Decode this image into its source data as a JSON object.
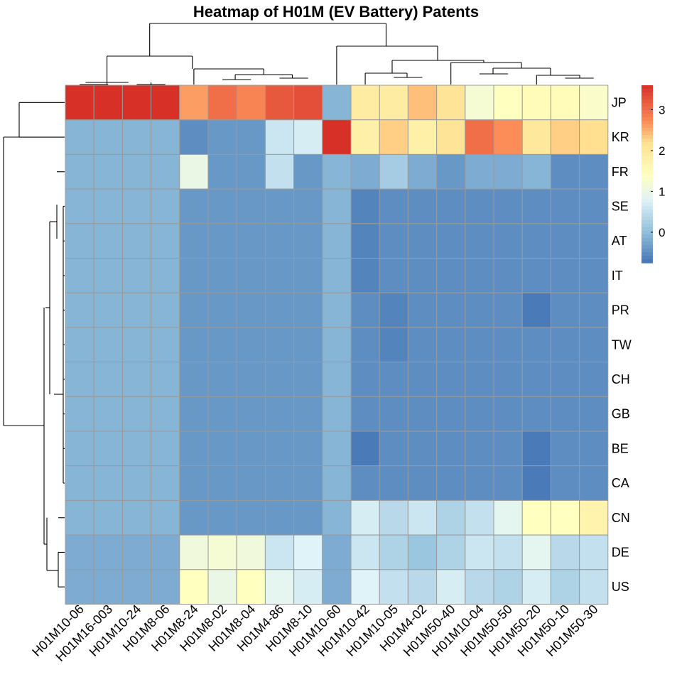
{
  "chart_data": {
    "type": "heatmap",
    "title": "Heatmap of H01M (EV Battery) Patents",
    "rows": [
      "JP",
      "KR",
      "FR",
      "SE",
      "AT",
      "IT",
      "PR",
      "TW",
      "CH",
      "GB",
      "BE",
      "CA",
      "CN",
      "DE",
      "US"
    ],
    "columns": [
      "H01M10-06",
      "H01M16-003",
      "H01M10-24",
      "H01M8-06",
      "H01M8-24",
      "H01M8-02",
      "H01M8-04",
      "H01M4-86",
      "H01M8-10",
      "H01M10-60",
      "H01M10-42",
      "H01M10-05",
      "H01M4-02",
      "H01M50-40",
      "H01M10-04",
      "H01M50-50",
      "H01M50-20",
      "H01M50-10",
      "H01M50-30"
    ],
    "values": [
      [
        3.6,
        3.6,
        3.6,
        3.6,
        2.6,
        3.0,
        2.8,
        3.2,
        3.3,
        -0.1,
        1.9,
        1.9,
        2.4,
        2.1,
        1.2,
        1.4,
        1.5,
        1.5,
        1.3
      ],
      [
        -0.1,
        -0.1,
        -0.1,
        -0.1,
        -0.5,
        -0.4,
        -0.4,
        0.6,
        0.7,
        3.6,
        1.8,
        2.3,
        1.8,
        2.1,
        3.0,
        2.7,
        2.0,
        2.3,
        2.2
      ],
      [
        -0.1,
        -0.1,
        -0.1,
        -0.1,
        1.0,
        -0.4,
        -0.4,
        0.5,
        -0.4,
        -0.1,
        -0.2,
        0.2,
        -0.2,
        -0.4,
        -0.2,
        -0.2,
        -0.1,
        -0.5,
        -0.5
      ],
      [
        -0.1,
        -0.1,
        -0.1,
        -0.1,
        -0.4,
        -0.4,
        -0.4,
        -0.4,
        -0.4,
        -0.1,
        -0.6,
        -0.5,
        -0.5,
        -0.5,
        -0.5,
        -0.5,
        -0.5,
        -0.5,
        -0.5
      ],
      [
        -0.1,
        -0.1,
        -0.1,
        -0.1,
        -0.4,
        -0.4,
        -0.4,
        -0.4,
        -0.4,
        -0.1,
        -0.6,
        -0.5,
        -0.5,
        -0.5,
        -0.5,
        -0.5,
        -0.5,
        -0.5,
        -0.5
      ],
      [
        -0.1,
        -0.1,
        -0.1,
        -0.1,
        -0.4,
        -0.4,
        -0.4,
        -0.4,
        -0.4,
        -0.1,
        -0.6,
        -0.5,
        -0.5,
        -0.5,
        -0.5,
        -0.5,
        -0.5,
        -0.5,
        -0.5
      ],
      [
        -0.1,
        -0.1,
        -0.1,
        -0.1,
        -0.4,
        -0.4,
        -0.4,
        -0.4,
        -0.4,
        -0.1,
        -0.5,
        -0.6,
        -0.5,
        -0.5,
        -0.5,
        -0.5,
        -0.7,
        -0.5,
        -0.5
      ],
      [
        -0.1,
        -0.1,
        -0.1,
        -0.1,
        -0.4,
        -0.4,
        -0.4,
        -0.4,
        -0.4,
        -0.1,
        -0.5,
        -0.6,
        -0.5,
        -0.5,
        -0.5,
        -0.5,
        -0.5,
        -0.5,
        -0.5
      ],
      [
        -0.1,
        -0.1,
        -0.1,
        -0.1,
        -0.4,
        -0.4,
        -0.4,
        -0.4,
        -0.4,
        -0.1,
        -0.5,
        -0.5,
        -0.5,
        -0.5,
        -0.5,
        -0.5,
        -0.5,
        -0.5,
        -0.5
      ],
      [
        -0.1,
        -0.1,
        -0.1,
        -0.1,
        -0.4,
        -0.4,
        -0.4,
        -0.4,
        -0.4,
        -0.1,
        -0.5,
        -0.5,
        -0.5,
        -0.5,
        -0.5,
        -0.5,
        -0.5,
        -0.5,
        -0.5
      ],
      [
        -0.1,
        -0.1,
        -0.1,
        -0.1,
        -0.4,
        -0.4,
        -0.4,
        -0.4,
        -0.4,
        -0.1,
        -0.7,
        -0.5,
        -0.5,
        -0.5,
        -0.5,
        -0.5,
        -0.7,
        -0.5,
        -0.5
      ],
      [
        -0.1,
        -0.1,
        -0.1,
        -0.1,
        -0.4,
        -0.4,
        -0.4,
        -0.4,
        -0.4,
        -0.1,
        -0.5,
        -0.5,
        -0.5,
        -0.5,
        -0.5,
        -0.5,
        -0.7,
        -0.5,
        -0.5
      ],
      [
        -0.1,
        -0.1,
        -0.1,
        -0.1,
        -0.4,
        -0.4,
        -0.4,
        -0.4,
        -0.4,
        -0.1,
        0.7,
        0.4,
        0.6,
        0.3,
        0.5,
        0.9,
        1.4,
        1.4,
        1.7
      ],
      [
        -0.2,
        -0.2,
        -0.2,
        -0.2,
        1.1,
        1.2,
        1.1,
        0.6,
        0.8,
        -0.2,
        0.6,
        0.3,
        0.1,
        0.3,
        0.6,
        0.5,
        0.9,
        0.4,
        0.5
      ],
      [
        -0.2,
        -0.2,
        -0.2,
        -0.2,
        1.4,
        1.0,
        1.4,
        0.9,
        0.7,
        -0.2,
        0.8,
        0.5,
        0.4,
        0.7,
        0.4,
        0.3,
        0.7,
        0.3,
        0.5
      ]
    ],
    "color_scale": {
      "min": -0.75,
      "max": 3.6,
      "stops": [
        {
          "value": -0.75,
          "color": "#4575B4"
        },
        {
          "value": 0.0,
          "color": "#91BFDB"
        },
        {
          "value": 0.8,
          "color": "#E0F3F8"
        },
        {
          "value": 1.4,
          "color": "#FFFFBF"
        },
        {
          "value": 2.2,
          "color": "#FEE090"
        },
        {
          "value": 2.7,
          "color": "#FC8D59"
        },
        {
          "value": 3.6,
          "color": "#D73027"
        }
      ],
      "ticks": [
        0,
        1,
        2,
        3
      ]
    },
    "row_dendrogram": "left",
    "column_dendrogram": "top",
    "legend": "right"
  }
}
